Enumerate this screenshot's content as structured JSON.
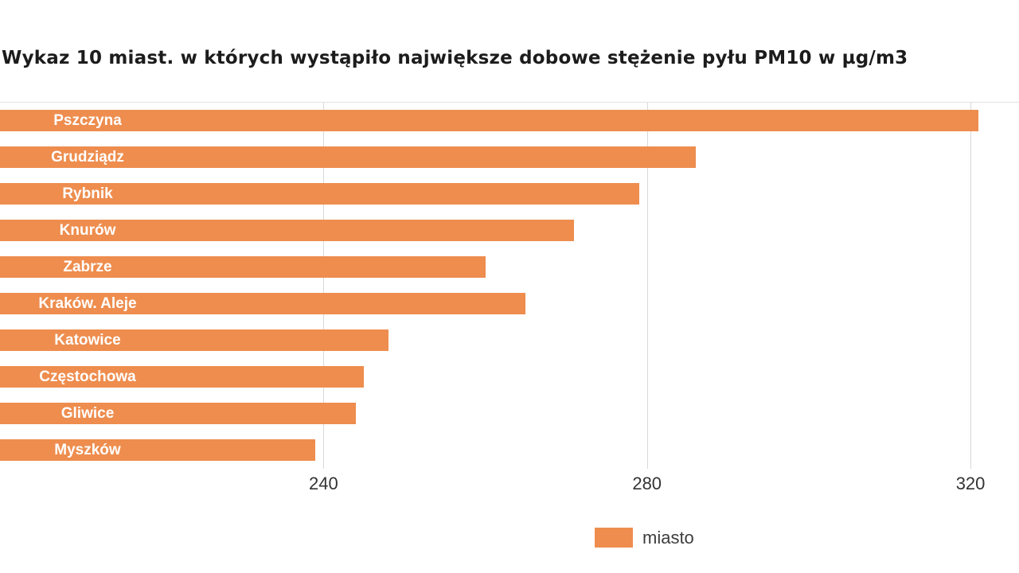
{
  "chart_data": {
    "type": "bar",
    "orientation": "horizontal",
    "title": "Wykaz 10 miast. w których wystąpiło największe dobowe stężenie pyłu PM10 w µg/m3",
    "categories": [
      "Pszczyna",
      "Grudziądz",
      "Rybnik",
      "Knurów",
      "Zabrze",
      "Kraków. Aleje",
      "Katowice",
      "Częstochowa",
      "Gliwice",
      "Myszków"
    ],
    "values": [
      321,
      286,
      279,
      271,
      260,
      265,
      248,
      245,
      244,
      239
    ],
    "xlabel": "",
    "ylabel": "",
    "xlim": [
      200,
      326
    ],
    "xticks": [
      240,
      280,
      320
    ],
    "grid": true,
    "legend_position": "bottom",
    "legend": [
      "miasto"
    ],
    "colors": {
      "bar": "#ee8d4e",
      "gridline": "#d8d8d8",
      "bar_label": "#ffffff",
      "tick_label": "#333333"
    }
  }
}
